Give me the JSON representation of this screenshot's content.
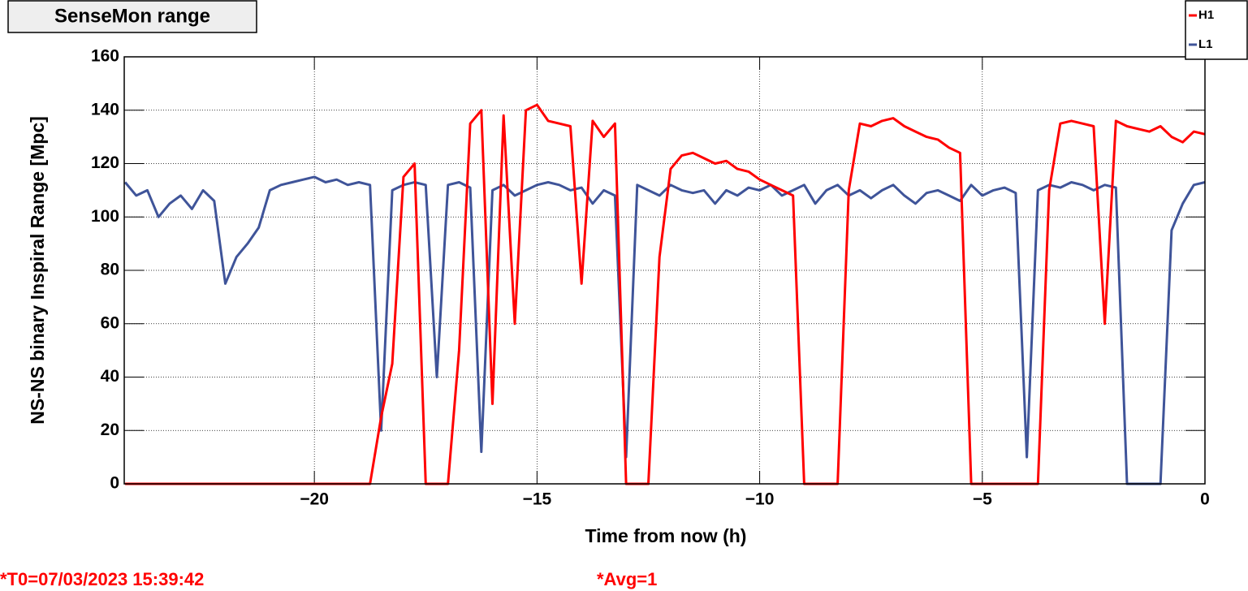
{
  "chart_data": {
    "type": "line",
    "title": "SenseMon range",
    "xlabel": "Time from now (h)",
    "ylabel": "NS-NS binary Inspiral Range [Mpc]",
    "annotations": [
      "*T0=07/03/2023 15:39:42",
      "*Avg=1"
    ],
    "legend": "top-right",
    "grid": true,
    "xlim": [
      -24.27,
      0
    ],
    "ylim": [
      0,
      160
    ],
    "xticks": [
      {
        "value": -20,
        "label": "−20"
      },
      {
        "value": -15,
        "label": "−15"
      },
      {
        "value": -10,
        "label": "−10"
      },
      {
        "value": -5,
        "label": "−5"
      },
      0
    ],
    "yticks": [
      0,
      20,
      40,
      60,
      80,
      100,
      120,
      140,
      160
    ],
    "x": [
      -24.25,
      -24,
      -23.75,
      -23.5,
      -23.25,
      -23,
      -22.75,
      -22.5,
      -22.25,
      -22,
      -21.75,
      -21.5,
      -21.25,
      -21,
      -20.75,
      -20.5,
      -20.25,
      -20,
      -19.75,
      -19.5,
      -19.25,
      -19,
      -18.75,
      -18.5,
      -18.25,
      -18,
      -17.75,
      -17.5,
      -17.25,
      -17,
      -16.75,
      -16.5,
      -16.25,
      -16,
      -15.75,
      -15.5,
      -15.25,
      -15,
      -14.75,
      -14.5,
      -14.25,
      -14,
      -13.75,
      -13.5,
      -13.25,
      -13,
      -12.75,
      -12.5,
      -12.25,
      -12,
      -11.75,
      -11.5,
      -11.25,
      -11,
      -10.75,
      -10.5,
      -10.25,
      -10,
      -9.75,
      -9.5,
      -9.25,
      -9,
      -8.75,
      -8.5,
      -8.25,
      -8,
      -7.75,
      -7.5,
      -7.25,
      -7,
      -6.75,
      -6.5,
      -6.25,
      -6,
      -5.75,
      -5.5,
      -5.25,
      -5,
      -4.75,
      -4.5,
      -4.25,
      -4,
      -3.75,
      -3.5,
      -3.25,
      -3,
      -2.75,
      -2.5,
      -2.25,
      -2,
      -1.75,
      -1.5,
      -1.25,
      -1,
      -0.75,
      -0.5,
      -0.25,
      0
    ],
    "series": [
      {
        "name": "L1",
        "color": "#3f5499",
        "values": [
          113,
          108,
          110,
          100,
          105,
          108,
          103,
          110,
          106,
          75,
          85,
          90,
          96,
          110,
          112,
          113,
          114,
          115,
          113,
          114,
          112,
          113,
          112,
          20,
          110,
          112,
          113,
          112,
          40,
          112,
          113,
          111,
          12,
          110,
          112,
          108,
          110,
          112,
          113,
          112,
          110,
          111,
          105,
          110,
          108,
          10,
          112,
          110,
          108,
          112,
          110,
          109,
          110,
          105,
          110,
          108,
          111,
          110,
          112,
          108,
          110,
          112,
          105,
          110,
          112,
          108,
          110,
          107,
          110,
          112,
          108,
          105,
          109,
          110,
          108,
          106,
          112,
          108,
          110,
          111,
          109,
          10,
          110,
          112,
          111,
          113,
          112,
          110,
          112,
          111,
          0,
          0,
          0,
          0,
          95,
          105,
          112,
          113
        ]
      },
      {
        "name": "H1",
        "color": "#ff0000",
        "values": [
          0,
          0,
          0,
          0,
          0,
          0,
          0,
          0,
          0,
          0,
          0,
          0,
          0,
          0,
          0,
          0,
          0,
          0,
          0,
          0,
          0,
          0,
          0,
          25,
          45,
          115,
          120,
          0,
          0,
          0,
          50,
          135,
          140,
          30,
          138,
          60,
          140,
          142,
          136,
          135,
          134,
          75,
          136,
          130,
          135,
          0,
          0,
          0,
          85,
          118,
          123,
          124,
          122,
          120,
          121,
          118,
          117,
          114,
          112,
          110,
          108,
          0,
          0,
          0,
          0,
          110,
          135,
          134,
          136,
          137,
          134,
          132,
          130,
          129,
          126,
          124,
          0,
          0,
          0,
          0,
          0,
          0,
          0,
          110,
          135,
          136,
          135,
          134,
          60,
          136,
          134,
          133,
          132,
          134,
          130,
          128,
          132,
          131
        ]
      }
    ]
  }
}
